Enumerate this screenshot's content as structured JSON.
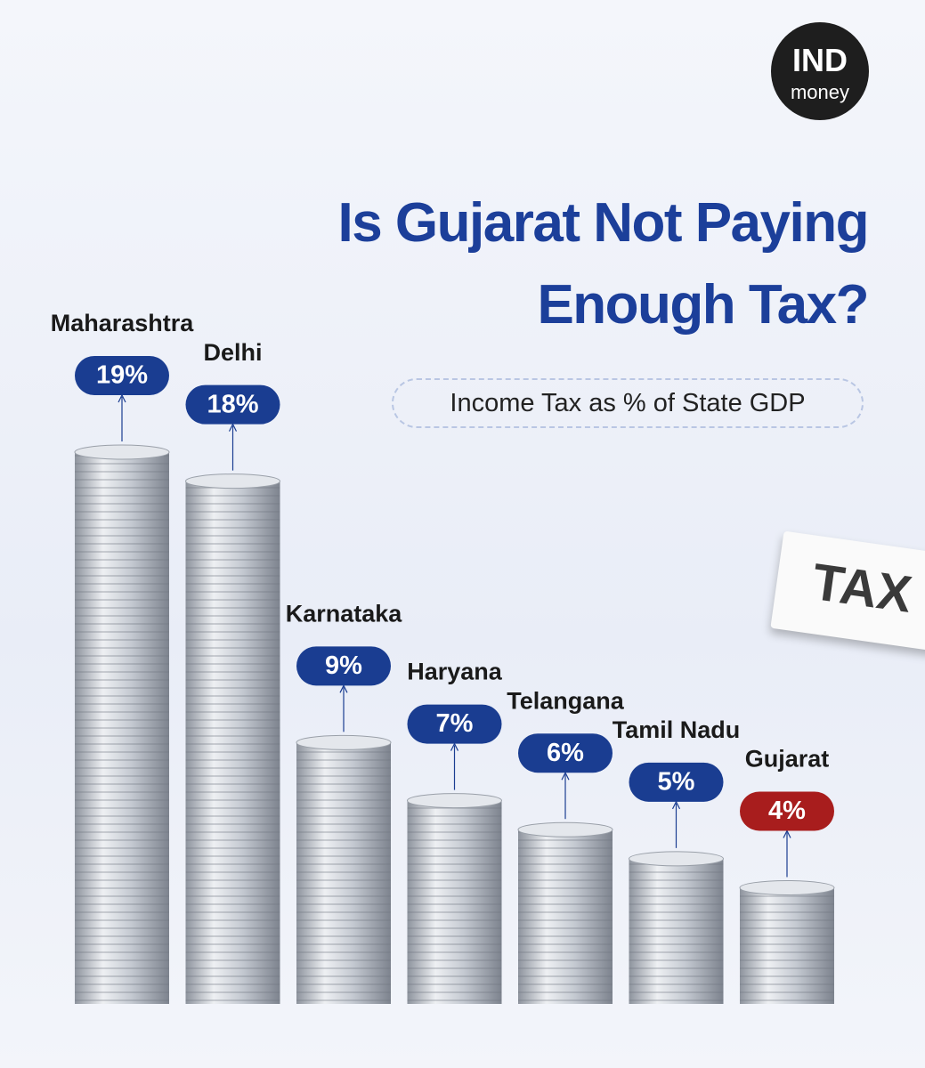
{
  "logo": {
    "line1": "IND",
    "line2": "money"
  },
  "decoration_text": "TAX",
  "chart_data": {
    "type": "bar",
    "title": "Is Gujarat Not Paying Enough Tax?",
    "subtitle": "Income Tax as % of State GDP",
    "categories": [
      "Maharashtra",
      "Delhi",
      "Karnataka",
      "Haryana",
      "Telangana",
      "Tamil Nadu",
      "Gujarat"
    ],
    "values": [
      19,
      18,
      9,
      7,
      6,
      5,
      4
    ],
    "value_labels": [
      "19%",
      "18%",
      "9%",
      "7%",
      "6%",
      "5%",
      "4%"
    ],
    "label_colors": [
      "#1a3d91",
      "#1a3d91",
      "#1a3d91",
      "#1a3d91",
      "#1a3d91",
      "#1a3d91",
      "#a81d1d"
    ]
  }
}
